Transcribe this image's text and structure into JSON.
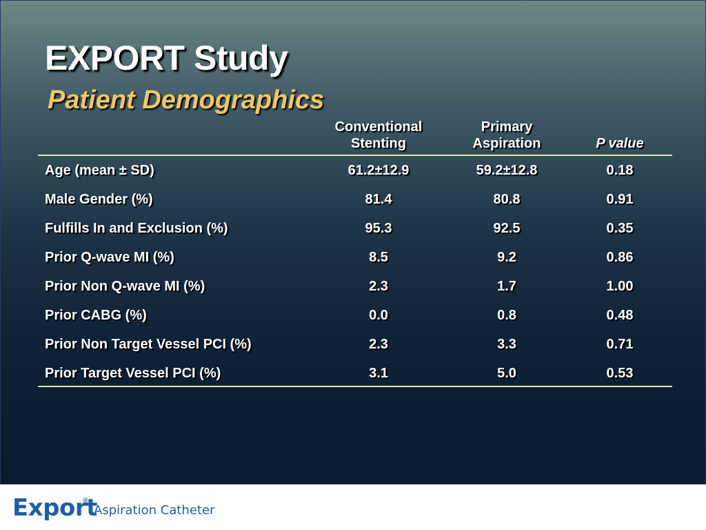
{
  "slide": {
    "title": "EXPORT Study",
    "subtitle": "Patient Demographics"
  },
  "table": {
    "headers": {
      "col1": [
        "Conventional",
        "Stenting"
      ],
      "col2": [
        "Primary",
        "Aspiration"
      ],
      "col3": "P value"
    },
    "rows": [
      {
        "label": "Age (mean ± SD)",
        "conventional": "61.2±12.9",
        "aspiration": "59.2±12.8",
        "p": "0.18"
      },
      {
        "label": "Male Gender (%)",
        "conventional": "81.4",
        "aspiration": "80.8",
        "p": "0.91"
      },
      {
        "label": "Fulfills In and Exclusion (%)",
        "conventional": "95.3",
        "aspiration": "92.5",
        "p": "0.35"
      },
      {
        "label": "Prior Q-wave MI (%)",
        "conventional": "8.5",
        "aspiration": "9.2",
        "p": "0.86"
      },
      {
        "label": "Prior Non Q-wave MI (%)",
        "conventional": "2.3",
        "aspiration": "1.7",
        "p": "1.00"
      },
      {
        "label": "Prior CABG (%)",
        "conventional": "0.0",
        "aspiration": "0.8",
        "p": "0.48"
      },
      {
        "label": "Prior Non Target Vessel PCI (%)",
        "conventional": "2.3",
        "aspiration": "3.3",
        "p": "0.71"
      },
      {
        "label": "Prior Target Vessel PCI (%)",
        "conventional": "3.1",
        "aspiration": "5.0",
        "p": "0.53"
      }
    ]
  },
  "footer": {
    "logo_word": "Export",
    "logo_mark": "®",
    "logo_subtitle": "Aspiration Catheter"
  },
  "colors": {
    "title": "#ffffff",
    "subtitle": "#f2c766",
    "rule": "#e9e4a8",
    "logo": "#1f5e9f"
  }
}
